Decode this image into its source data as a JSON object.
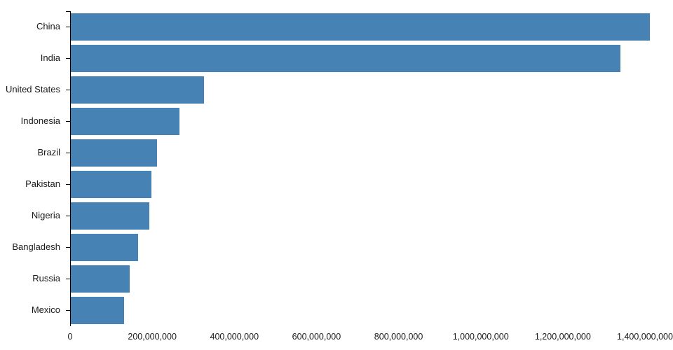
{
  "chart_data": {
    "type": "bar",
    "orientation": "horizontal",
    "title": "",
    "xlabel": "",
    "ylabel": "",
    "categories": [
      "China",
      "India",
      "United States",
      "Indonesia",
      "Brazil",
      "Pakistan",
      "Nigeria",
      "Bangladesh",
      "Russia",
      "Mexico"
    ],
    "values": [
      1409517397,
      1339180127,
      324459463,
      263991379,
      209288278,
      197015955,
      190886311,
      164669751,
      143989754,
      129163276
    ],
    "xlim": [
      0,
      1400000000
    ],
    "x_ticks": [
      0,
      200000000,
      400000000,
      600000000,
      800000000,
      1000000000,
      1200000000,
      1400000000
    ],
    "x_tick_labels": [
      "0",
      "200,000,000",
      "400,000,000",
      "600,000,000",
      "800,000,000",
      "1,000,000,000",
      "1,200,000,000",
      "1,400,000,000"
    ],
    "grid": false,
    "legend": "none",
    "bar_color": "#4682b4",
    "axis_color": "#000000"
  }
}
